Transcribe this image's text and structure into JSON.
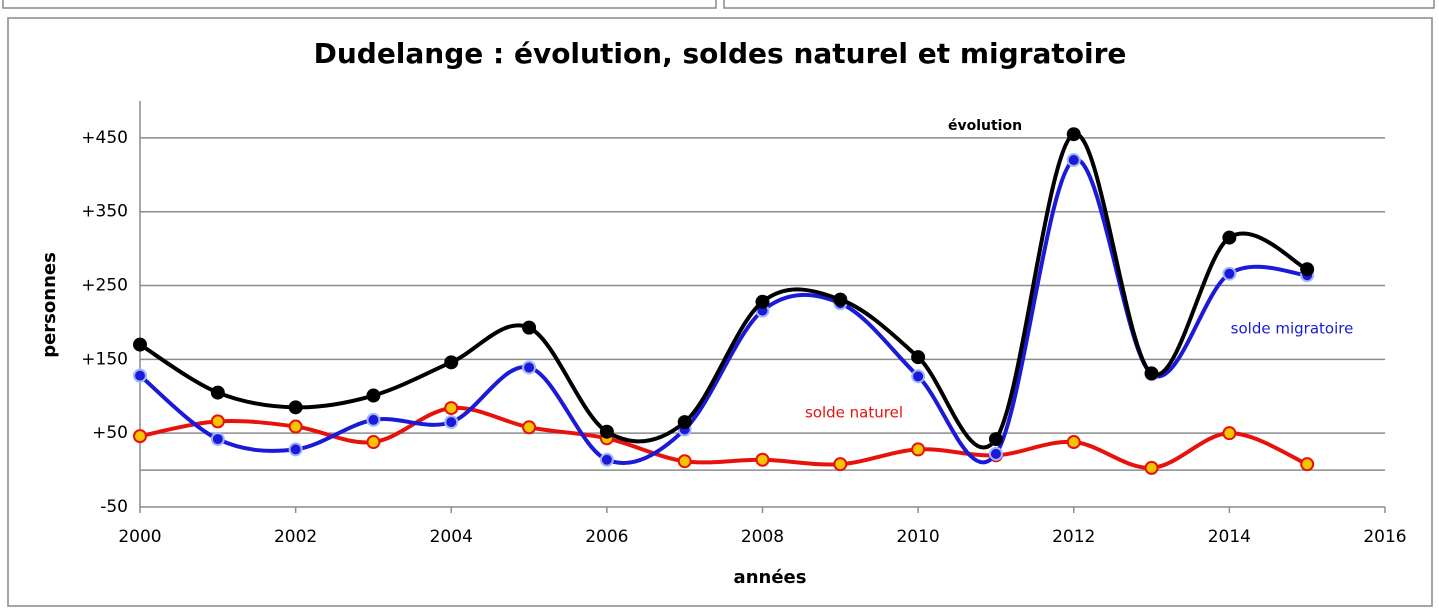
{
  "chart_data": {
    "type": "line",
    "title": "Dudelange : évolution, soldes naturel et migratoire",
    "x_label": "années",
    "y_label": "personnes",
    "x": [
      2000,
      2001,
      2002,
      2003,
      2004,
      2005,
      2006,
      2007,
      2008,
      2009,
      2010,
      2011,
      2012,
      2013,
      2014,
      2015
    ],
    "series": [
      {
        "name": "solde  naturel",
        "color": "#e8120c",
        "marker_fill": "#f5c400",
        "values": [
          46,
          66,
          59,
          38,
          84,
          58,
          43,
          12,
          14,
          8,
          28,
          20,
          38,
          3,
          50,
          8
        ]
      },
      {
        "name": "solde migratoire",
        "color": "#1a1ad8",
        "marker_fill": "#1a1ad8",
        "values": [
          128,
          42,
          28,
          68,
          65,
          139,
          14,
          55,
          216,
          226,
          127,
          22,
          420,
          130,
          266,
          264
        ]
      },
      {
        "name": "évolution",
        "color": "#000000",
        "marker_fill": "#000000",
        "values": [
          170,
          105,
          85,
          101,
          146,
          193,
          52,
          65,
          228,
          231,
          153,
          42,
          455,
          131,
          315,
          272
        ]
      }
    ],
    "xlim": [
      2000,
      2016
    ],
    "xticks": [
      2000,
      2002,
      2004,
      2006,
      2008,
      2010,
      2012,
      2014,
      2016
    ],
    "ylim": [
      -50,
      500
    ],
    "yticks": [
      -50,
      {
        "value": 50,
        "label": "+50"
      },
      {
        "value": 150,
        "label": "+150"
      },
      {
        "value": 250,
        "label": "+250"
      },
      {
        "value": 350,
        "label": "+350"
      },
      {
        "value": 450,
        "label": "+450"
      }
    ],
    "grid": true
  }
}
